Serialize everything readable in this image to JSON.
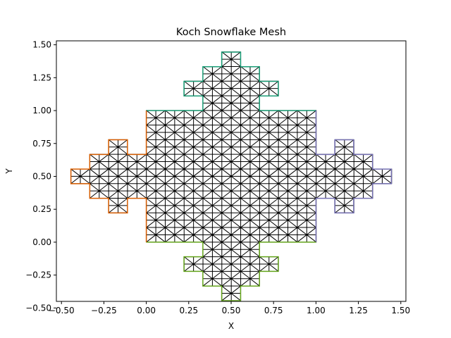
{
  "chart_data": {
    "type": "mesh",
    "title": "Koch Snowflake Mesh",
    "xlabel": "X",
    "ylabel": "Y",
    "xlim": [
      -0.53,
      1.53
    ],
    "ylim": [
      -0.45,
      1.53
    ],
    "xticks": [
      -0.5,
      -0.25,
      0.0,
      0.25,
      0.5,
      0.75,
      1.0,
      1.25,
      1.5
    ],
    "xtick_labels": [
      "−0.50",
      "−0.25",
      "0.00",
      "0.25",
      "0.50",
      "0.75",
      "1.00",
      "1.25",
      "1.50"
    ],
    "yticks": [
      -0.5,
      -0.25,
      0.0,
      0.25,
      0.5,
      0.75,
      1.0,
      1.25,
      1.5
    ],
    "ytick_labels": [
      "−0.50",
      "−0.25",
      "0.00",
      "0.25",
      "0.50",
      "0.75",
      "1.00",
      "1.25",
      "1.50"
    ],
    "grid": false,
    "mesh_color": "#000000",
    "mesh_spacing": 0.0556,
    "boundary_segments": [
      {
        "side": "top",
        "color": "#1b9e77",
        "points": [
          [
            0,
            1
          ],
          [
            0.3333,
            1
          ],
          [
            0.3333,
            1.1111
          ],
          [
            0.2222,
            1.1111
          ],
          [
            0.2222,
            1.2222
          ],
          [
            0.3333,
            1.2222
          ],
          [
            0.3333,
            1.3333
          ],
          [
            0.4444,
            1.3333
          ],
          [
            0.4444,
            1.4444
          ],
          [
            0.5556,
            1.4444
          ],
          [
            0.5556,
            1.3333
          ],
          [
            0.6667,
            1.3333
          ],
          [
            0.6667,
            1.2222
          ],
          [
            0.7778,
            1.2222
          ],
          [
            0.7778,
            1.1111
          ],
          [
            0.6667,
            1.1111
          ],
          [
            0.6667,
            1
          ],
          [
            1,
            1
          ]
        ]
      },
      {
        "side": "right",
        "color": "#7570b3",
        "points": [
          [
            1,
            1
          ],
          [
            1,
            0.6667
          ],
          [
            1.1111,
            0.6667
          ],
          [
            1.1111,
            0.7778
          ],
          [
            1.2222,
            0.7778
          ],
          [
            1.2222,
            0.6667
          ],
          [
            1.3333,
            0.6667
          ],
          [
            1.3333,
            0.5556
          ],
          [
            1.4444,
            0.5556
          ],
          [
            1.4444,
            0.4444
          ],
          [
            1.3333,
            0.4444
          ],
          [
            1.3333,
            0.3333
          ],
          [
            1.2222,
            0.3333
          ],
          [
            1.2222,
            0.2222
          ],
          [
            1.1111,
            0.2222
          ],
          [
            1.1111,
            0.3333
          ],
          [
            1,
            0.3333
          ],
          [
            1,
            0
          ]
        ]
      },
      {
        "side": "bottom",
        "color": "#66a61e",
        "points": [
          [
            1,
            0
          ],
          [
            0.6667,
            0
          ],
          [
            0.6667,
            -0.1111
          ],
          [
            0.7778,
            -0.1111
          ],
          [
            0.7778,
            -0.2222
          ],
          [
            0.6667,
            -0.2222
          ],
          [
            0.6667,
            -0.3333
          ],
          [
            0.5556,
            -0.3333
          ],
          [
            0.5556,
            -0.4444
          ],
          [
            0.4444,
            -0.4444
          ],
          [
            0.4444,
            -0.3333
          ],
          [
            0.3333,
            -0.3333
          ],
          [
            0.3333,
            -0.2222
          ],
          [
            0.2222,
            -0.2222
          ],
          [
            0.2222,
            -0.1111
          ],
          [
            0.3333,
            -0.1111
          ],
          [
            0.3333,
            0
          ],
          [
            0,
            0
          ]
        ]
      },
      {
        "side": "left",
        "color": "#d95f02",
        "points": [
          [
            0,
            0
          ],
          [
            0,
            0.3333
          ],
          [
            -0.1111,
            0.3333
          ],
          [
            -0.1111,
            0.2222
          ],
          [
            -0.2222,
            0.2222
          ],
          [
            -0.2222,
            0.3333
          ],
          [
            -0.3333,
            0.3333
          ],
          [
            -0.3333,
            0.4444
          ],
          [
            -0.4444,
            0.4444
          ],
          [
            -0.4444,
            0.5556
          ],
          [
            -0.3333,
            0.5556
          ],
          [
            -0.3333,
            0.6667
          ],
          [
            -0.2222,
            0.6667
          ],
          [
            -0.2222,
            0.7778
          ],
          [
            -0.1111,
            0.7778
          ],
          [
            -0.1111,
            0.6667
          ],
          [
            0,
            0.6667
          ],
          [
            0,
            1
          ]
        ]
      }
    ]
  }
}
